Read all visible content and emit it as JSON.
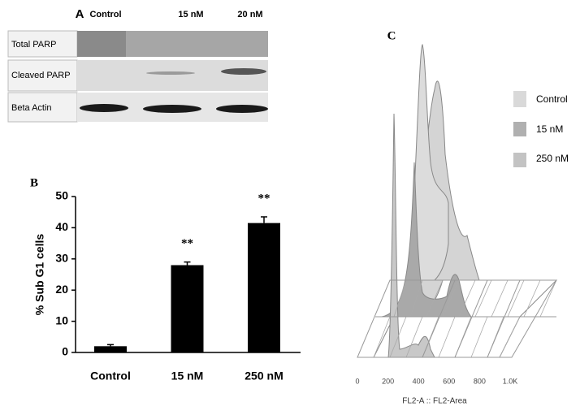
{
  "panel_a": {
    "label": "A",
    "columns": [
      "Control",
      "15 nM",
      "20 nM"
    ],
    "rows": [
      "Total PARP",
      "Cleaved PARP",
      "Beta Actin"
    ]
  },
  "chart_data": {
    "type": "bar",
    "panel_label": "B",
    "ylabel": "% Sub G1 cells",
    "categories": [
      "Control",
      "15 nM",
      "250 nM"
    ],
    "values": [
      2,
      28,
      41.5
    ],
    "errors": [
      0.5,
      1,
      2
    ],
    "color": "#000000",
    "ylim": [
      0,
      50
    ],
    "yticks": [
      0,
      10,
      20,
      30,
      40,
      50
    ],
    "annotations": [
      {
        "x": "15 nM",
        "text": "**"
      },
      {
        "x": "250 nM",
        "text": "**"
      }
    ]
  },
  "panel_c": {
    "label": "C",
    "legend": [
      "Control",
      "15 nM",
      "250 nM"
    ],
    "xtick_labels": [
      "0",
      "200",
      "400",
      "600",
      "800",
      "1.0K"
    ],
    "xlabel": "FL2-A :: FL2-Area"
  }
}
